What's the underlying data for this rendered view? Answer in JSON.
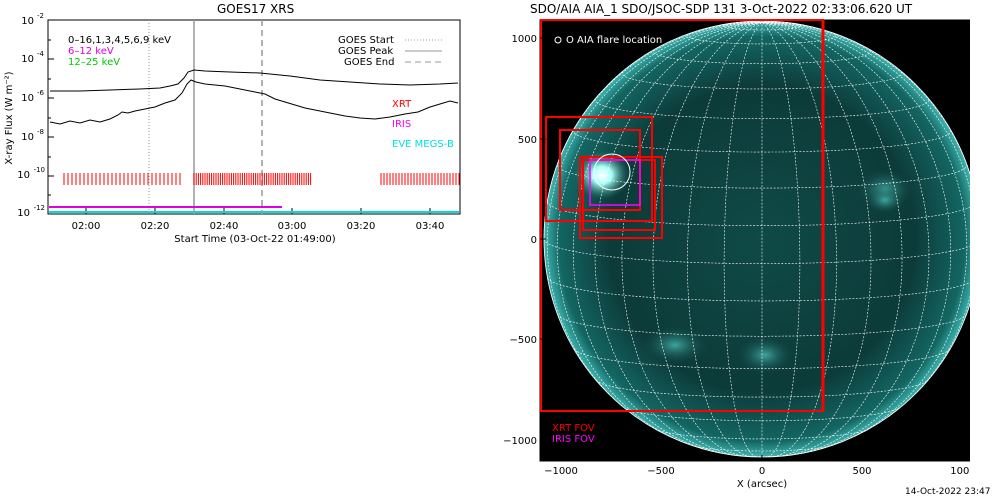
{
  "left_panel": {
    "title": "GOES17 XRS",
    "ylabel": "X-ray Flux (W m⁻²)",
    "xlabel": "Start Time (03-Oct-22 01:49:00)",
    "legend_left": [
      {
        "text": "0–16,1,3,4,5,6,9 keV",
        "color": "#000000"
      },
      {
        "text": "6–12 keV",
        "color": "#e000e0"
      },
      {
        "text": "12–25 keV",
        "color": "#00c800"
      }
    ],
    "legend_right": [
      {
        "text": "GOES Start",
        "style": "dotted"
      },
      {
        "text": "GOES Peak",
        "style": "solid"
      },
      {
        "text": "GOES End",
        "style": "dashed"
      }
    ],
    "instrument_labels": [
      {
        "text": "XRT",
        "color": "#ff0000"
      },
      {
        "text": "IRIS",
        "color": "#ff00ff"
      },
      {
        "text": "EVE MEGS-B",
        "color": "#00e0e0"
      }
    ],
    "x_ticks": [
      "02:00",
      "02:20",
      "02:40",
      "03:00",
      "03:20",
      "03:40"
    ],
    "y_ticks": [
      {
        "base": "10",
        "exp": "-2"
      },
      {
        "base": "10",
        "exp": "-4"
      },
      {
        "base": "10",
        "exp": "-6"
      },
      {
        "base": "10",
        "exp": "-8"
      },
      {
        "base": "10",
        "exp": "-10"
      },
      {
        "base": "10",
        "exp": "-12"
      }
    ]
  },
  "right_panel": {
    "title": "SDO/AIA AIA_1 SDO/JSOC-SDP 131  3-Oct-2022 02:33:06.620 UT",
    "legend_top": "O AIA flare location",
    "legend_bottom": [
      {
        "text": "XRT FOV",
        "color": "#ff0000"
      },
      {
        "text": "IRIS FOV",
        "color": "#ff00ff"
      }
    ],
    "xlabel": "X (arcsec)",
    "x_ticks": [
      "−1000",
      "−500",
      "0",
      "500",
      "1000"
    ],
    "y_ticks": [
      "1000",
      "500",
      "0",
      "−500",
      "−1000"
    ]
  },
  "footer": {
    "timestamp": "14-Oct-2022 23:47"
  }
}
